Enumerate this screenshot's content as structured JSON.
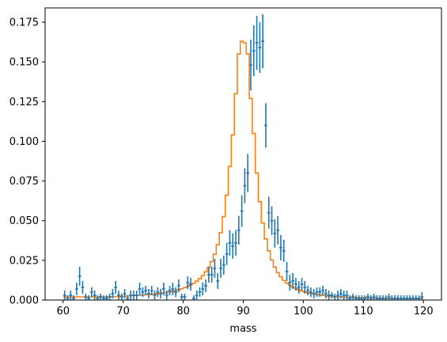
{
  "chart_data": {
    "type": "line",
    "xlabel": "mass",
    "ylabel": "",
    "title": "",
    "xlim": [
      57,
      123
    ],
    "ylim": [
      0,
      0.184
    ],
    "xticks": [
      60,
      70,
      80,
      90,
      100,
      110,
      120
    ],
    "xtick_labels": [
      "60",
      "70",
      "80",
      "90",
      "100",
      "110",
      "120"
    ],
    "yticks": [
      0,
      0.025,
      0.05,
      0.075,
      0.1,
      0.125,
      0.15,
      0.175
    ],
    "ytick_labels": [
      "0.000",
      "0.025",
      "0.050",
      "0.075",
      "0.100",
      "0.125",
      "0.150",
      "0.175"
    ],
    "bin_edges": [
      60,
      60.5,
      61,
      61.5,
      62,
      62.5,
      63,
      63.5,
      64,
      64.5,
      65,
      65.5,
      66,
      66.5,
      67,
      67.5,
      68,
      68.5,
      69,
      69.5,
      70,
      70.5,
      71,
      71.5,
      72,
      72.5,
      73,
      73.5,
      74,
      74.5,
      75,
      75.5,
      76,
      76.5,
      77,
      77.5,
      78,
      78.5,
      79,
      79.5,
      80,
      80.5,
      81,
      81.5,
      82,
      82.5,
      83,
      83.5,
      84,
      84.5,
      85,
      85.5,
      86,
      86.5,
      87,
      87.5,
      88,
      88.5,
      89,
      89.5,
      90,
      90.5,
      91,
      91.5,
      92,
      92.5,
      93,
      93.5,
      94,
      94.5,
      95,
      95.5,
      96,
      96.5,
      97,
      97.5,
      98,
      98.5,
      99,
      99.5,
      100,
      100.5,
      101,
      101.5,
      102,
      102.5,
      103,
      103.5,
      104,
      104.5,
      105,
      105.5,
      106,
      106.5,
      107,
      107.5,
      108,
      108.5,
      109,
      109.5,
      110,
      110.5,
      111,
      111.5,
      112,
      112.5,
      113,
      113.5,
      114,
      114.5,
      115,
      115.5,
      116,
      116.5,
      117,
      117.5,
      118,
      118.5,
      119,
      119.5,
      120
    ],
    "series": [
      {
        "kind": "errorbar",
        "color": "#1f77b4",
        "x": [
          60.25,
          60.75,
          61.25,
          61.75,
          62.25,
          62.75,
          63.25,
          63.75,
          64.25,
          64.75,
          65.25,
          65.75,
          66.25,
          66.75,
          67.25,
          67.75,
          68.25,
          68.75,
          69.25,
          69.75,
          70.25,
          70.75,
          71.25,
          71.75,
          72.25,
          72.75,
          73.25,
          73.75,
          74.25,
          74.75,
          75.25,
          75.75,
          76.25,
          76.75,
          77.25,
          77.75,
          78.25,
          78.75,
          79.25,
          79.75,
          80.25,
          80.75,
          81.25,
          81.75,
          82.25,
          82.75,
          83.25,
          83.75,
          84.25,
          84.75,
          85.25,
          85.75,
          86.25,
          86.75,
          87.25,
          87.75,
          88.25,
          88.75,
          89.25,
          89.75,
          90.25,
          90.75,
          91.25,
          91.75,
          92.25,
          92.75,
          93.25,
          93.75,
          94.25,
          94.75,
          95.25,
          95.75,
          96.25,
          96.75,
          97.25,
          97.75,
          98.25,
          98.75,
          99.25,
          99.75,
          100.25,
          100.75,
          101.25,
          101.75,
          102.25,
          102.75,
          103.25,
          103.75,
          104.25,
          104.75,
          105.25,
          105.75,
          106.25,
          106.75,
          107.25,
          107.75,
          108.25,
          108.75,
          109.25,
          109.75,
          110.25,
          110.75,
          111.25,
          111.75,
          112.25,
          112.75,
          113.25,
          113.75,
          114.25,
          114.75,
          115.25,
          115.75,
          116.25,
          116.75,
          117.25,
          117.75,
          118.25,
          118.75,
          119.25,
          119.75
        ],
        "y": [
          0.003,
          0.001,
          0.003,
          0.001,
          0.007,
          0.015,
          0.008,
          0.002,
          0.001,
          0.005,
          0.003,
          0.001,
          0.002,
          0.001,
          0.001,
          0.002,
          0.004,
          0.008,
          0.003,
          0.002,
          0.004,
          0.001,
          0.003,
          0.003,
          0.003,
          0.007,
          0.005,
          0.006,
          0.004,
          0.006,
          0.003,
          0.005,
          0.004,
          0.007,
          0.003,
          0.006,
          0.007,
          0.005,
          0.009,
          0.002,
          0.002,
          0.011,
          0.01,
          0.001,
          0.003,
          0.005,
          0.007,
          0.009,
          0.016,
          0.016,
          0.02,
          0.012,
          0.02,
          0.022,
          0.029,
          0.036,
          0.034,
          0.036,
          0.044,
          0.056,
          0.072,
          0.08,
          0.148,
          0.157,
          0.162,
          0.159,
          0.163,
          0.11,
          0.055,
          0.05,
          0.042,
          0.044,
          0.033,
          0.031,
          0.018,
          0.011,
          0.012,
          0.01,
          0.008,
          0.01,
          0.008,
          0.006,
          0.005,
          0.004,
          0.005,
          0.005,
          0.006,
          0.004,
          0.003,
          0.003,
          0.002,
          0.003,
          0.004,
          0.003,
          0.003,
          0.001,
          0.002,
          0.001,
          0.001,
          0.001,
          0.001,
          0.002,
          0.001,
          0.002,
          0.001,
          0.001,
          0.001,
          0.001,
          0.002,
          0.001,
          0.001,
          0.001,
          0.001,
          0.001,
          0.001,
          0.001,
          0.001,
          0.001,
          0.001,
          0.002
        ],
        "yerr": [
          0.003,
          0.002,
          0.003,
          0.002,
          0.004,
          0.006,
          0.004,
          0.002,
          0.002,
          0.003,
          0.003,
          0.002,
          0.002,
          0.002,
          0.002,
          0.002,
          0.003,
          0.004,
          0.003,
          0.002,
          0.003,
          0.002,
          0.003,
          0.003,
          0.003,
          0.004,
          0.003,
          0.003,
          0.003,
          0.003,
          0.003,
          0.003,
          0.003,
          0.004,
          0.003,
          0.003,
          0.004,
          0.003,
          0.004,
          0.002,
          0.002,
          0.004,
          0.004,
          0.002,
          0.003,
          0.003,
          0.004,
          0.004,
          0.005,
          0.005,
          0.006,
          0.005,
          0.006,
          0.006,
          0.007,
          0.008,
          0.008,
          0.008,
          0.009,
          0.01,
          0.011,
          0.012,
          0.016,
          0.016,
          0.017,
          0.016,
          0.017,
          0.014,
          0.01,
          0.009,
          0.009,
          0.009,
          0.008,
          0.007,
          0.006,
          0.005,
          0.005,
          0.004,
          0.004,
          0.004,
          0.004,
          0.003,
          0.003,
          0.003,
          0.003,
          0.003,
          0.003,
          0.003,
          0.003,
          0.002,
          0.002,
          0.003,
          0.003,
          0.003,
          0.003,
          0.002,
          0.002,
          0.002,
          0.002,
          0.002,
          0.002,
          0.002,
          0.002,
          0.002,
          0.002,
          0.002,
          0.002,
          0.002,
          0.002,
          0.002,
          0.002,
          0.002,
          0.002,
          0.002,
          0.002,
          0.002,
          0.002,
          0.002,
          0.002,
          0.003
        ]
      },
      {
        "kind": "step",
        "color": "#ff7f0e",
        "values": [
          0.002,
          0.002,
          0.002,
          0.002,
          0.002,
          0.002,
          0.002,
          0.002,
          0.002,
          0.002,
          0.002,
          0.002,
          0.002,
          0.002,
          0.002,
          0.002,
          0.0021,
          0.0022,
          0.0023,
          0.0024,
          0.0025,
          0.0026,
          0.0027,
          0.0028,
          0.0029,
          0.003,
          0.0031,
          0.0033,
          0.0034,
          0.0036,
          0.0038,
          0.004,
          0.0042,
          0.0045,
          0.0048,
          0.0051,
          0.0055,
          0.006,
          0.0065,
          0.0071,
          0.0078,
          0.0086,
          0.0095,
          0.0106,
          0.0119,
          0.0135,
          0.0154,
          0.0178,
          0.0207,
          0.0243,
          0.0289,
          0.0348,
          0.0425,
          0.0526,
          0.0661,
          0.0841,
          0.104,
          0.13,
          0.155,
          0.163,
          0.162,
          0.155,
          0.127,
          0.105,
          0.08,
          0.062,
          0.0485,
          0.0385,
          0.031,
          0.0252,
          0.0208,
          0.0173,
          0.0146,
          0.0124,
          0.0107,
          0.0093,
          0.0081,
          0.0072,
          0.0064,
          0.0057,
          0.0051,
          0.0046,
          0.0042,
          0.0038,
          0.0035,
          0.0032,
          0.0029,
          0.0027,
          0.0025,
          0.0023,
          0.0022,
          0.0021,
          0.002,
          0.0019,
          0.0018,
          0.0017,
          0.0016,
          0.0015,
          0.0015,
          0.0014,
          0.0014,
          0.0013,
          0.0013,
          0.0012,
          0.0012,
          0.0012,
          0.0011,
          0.0011,
          0.0011,
          0.001,
          0.001,
          0.001,
          0.001,
          0.001,
          0.001,
          0.001,
          0.001,
          0.001,
          0.001,
          0.001
        ]
      }
    ]
  }
}
